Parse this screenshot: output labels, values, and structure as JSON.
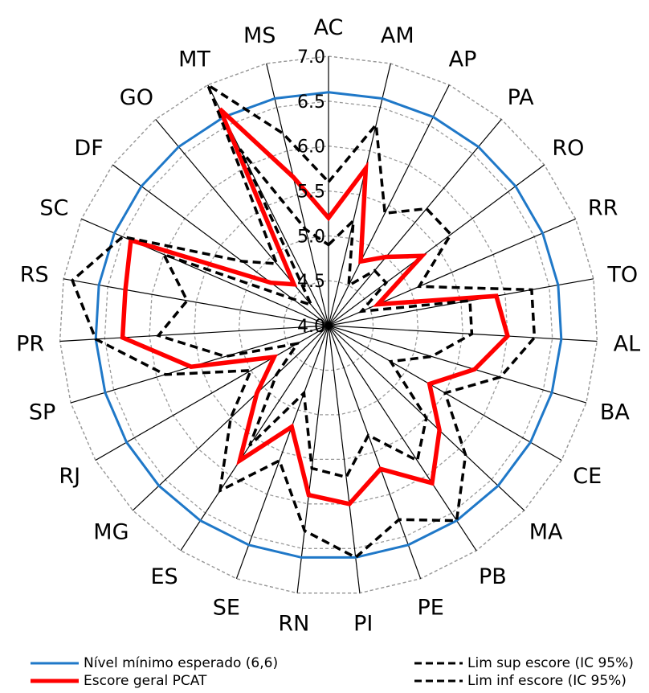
{
  "chart_data": {
    "type": "radar",
    "categories": [
      "AC",
      "AM",
      "AP",
      "PA",
      "RO",
      "RR",
      "TO",
      "AL",
      "BA",
      "CE",
      "MA",
      "PB",
      "PE",
      "PI",
      "RN",
      "SE",
      "ES",
      "MG",
      "RJ",
      "SP",
      "PR",
      "RS",
      "SC",
      "DF",
      "GO",
      "MT",
      "MS"
    ],
    "rlim": [
      4.0,
      7.0
    ],
    "rticks": [
      "4.0",
      "4.5",
      "5.0",
      "5.5",
      "6.0",
      "6.5",
      "7.0"
    ],
    "grid": true,
    "legend_placement": "bottom",
    "series": [
      {
        "name": "Nível mínimo esperado (6,6)",
        "color": "#1f78c8",
        "style": "solid",
        "values": [
          6.6,
          6.6,
          6.6,
          6.6,
          6.6,
          6.6,
          6.6,
          6.6,
          6.6,
          6.6,
          6.6,
          6.6,
          6.6,
          6.6,
          6.6,
          6.6,
          6.6,
          6.6,
          6.6,
          6.6,
          6.6,
          6.6,
          6.6,
          6.6,
          6.6,
          6.6,
          6.6
        ]
      },
      {
        "name": "Escore geral PCAT",
        "color": "#ff0000",
        "style": "solid",
        "values": [
          5.2,
          5.8,
          4.8,
          5.0,
          5.3,
          4.6,
          5.9,
          6.0,
          5.7,
          5.3,
          5.7,
          6.1,
          5.7,
          6.0,
          5.9,
          5.2,
          5.8,
          5.1,
          4.7,
          5.6,
          6.3,
          6.3,
          6.4,
          4.8,
          4.6,
          6.7,
          5.7
        ]
      },
      {
        "name": "Lim sup escore (IC 95%)",
        "color": "#000000",
        "style": "dashed",
        "values": [
          5.6,
          6.3,
          5.4,
          5.7,
          5.7,
          5.1,
          6.3,
          6.3,
          6.0,
          5.5,
          6.1,
          6.6,
          6.3,
          6.6,
          6.3,
          5.6,
          6.2,
          5.5,
          5.0,
          5.9,
          6.6,
          6.9,
          6.5,
          5.2,
          4.9,
          7.0,
          6.2
        ]
      },
      {
        "name": "Lim inf escore (IC 95%)",
        "color": "#000000",
        "style": "dashed",
        "values": [
          4.9,
          5.2,
          4.5,
          4.8,
          4.8,
          4.4,
          5.6,
          5.6,
          5.2,
          4.8,
          5.5,
          5.8,
          5.3,
          5.7,
          5.6,
          4.8,
          5.6,
          4.8,
          4.4,
          5.2,
          5.9,
          5.6,
          6.0,
          4.5,
          4.3,
          6.2,
          5.1
        ]
      }
    ]
  },
  "legend": {
    "items": [
      {
        "label": "Nível mínimo esperado (6,6)"
      },
      {
        "label": "Escore geral PCAT"
      },
      {
        "label": "Lim sup escore (IC 95%)"
      },
      {
        "label": "Lim inf escore (IC 95%)"
      }
    ]
  }
}
